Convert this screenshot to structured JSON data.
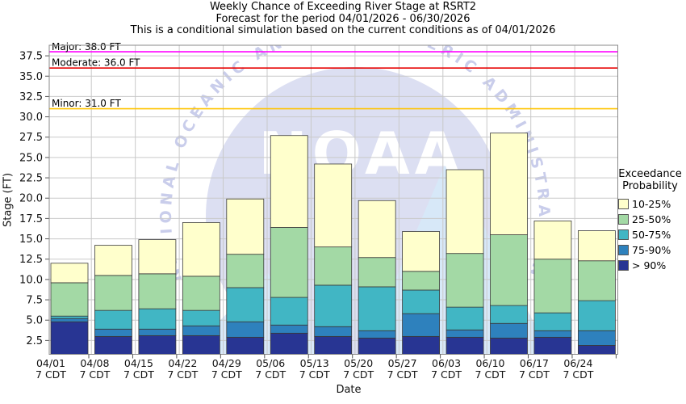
{
  "title": {
    "line1": "Weekly Chance of Exceeding River Stage at RSRT2",
    "line2": "Forecast for the period 04/01/2026 - 06/30/2026",
    "line3": "This is a conditional simulation based on the current conditions as of 04/01/2026"
  },
  "axes": {
    "y_label": "Stage (FT)",
    "x_label": "Date",
    "y_ticks": [
      "2.5",
      "5.0",
      "7.5",
      "10.0",
      "12.5",
      "15.0",
      "17.5",
      "20.0",
      "22.5",
      "25.0",
      "27.5",
      "30.0",
      "32.5",
      "35.0",
      "37.5"
    ],
    "x_ticks": [
      {
        "date": "04/01",
        "time": "7 CDT"
      },
      {
        "date": "04/08",
        "time": "7 CDT"
      },
      {
        "date": "04/15",
        "time": "7 CDT"
      },
      {
        "date": "04/22",
        "time": "7 CDT"
      },
      {
        "date": "04/29",
        "time": "7 CDT"
      },
      {
        "date": "05/06",
        "time": "7 CDT"
      },
      {
        "date": "05/13",
        "time": "7 CDT"
      },
      {
        "date": "05/20",
        "time": "7 CDT"
      },
      {
        "date": "05/27",
        "time": "7 CDT"
      },
      {
        "date": "06/03",
        "time": "7 CDT"
      },
      {
        "date": "06/10",
        "time": "7 CDT"
      },
      {
        "date": "06/17",
        "time": "7 CDT"
      },
      {
        "date": "06/24",
        "time": "7 CDT"
      }
    ]
  },
  "legend": {
    "title_line1": "Exceedance",
    "title_line2": "Probability",
    "items": [
      {
        "label": "10-25%",
        "color": "#FFFFCC"
      },
      {
        "label": "25-50%",
        "color": "#A3D9A5"
      },
      {
        "label": "50-75%",
        "color": "#41B6C4"
      },
      {
        "label": "75-90%",
        "color": "#2E81BD"
      },
      {
        "label": "> 90%",
        "color": "#283593"
      }
    ]
  },
  "watermark": {
    "ring_text": "NATIONAL OCEANIC AND ATMOSPHERIC ADMINISTRATION",
    "wordmark": "NOAA",
    "circle_color": "#dcdff2",
    "ring_text_color": "#c9cdeb",
    "bird_color": "#d7e8f8",
    "wordmark_color": "#ffffff"
  },
  "chart_data": {
    "type": "bar",
    "stacked": true,
    "title": "Weekly Chance of Exceeding River Stage at RSRT2",
    "xlabel": "Date",
    "ylabel": "Stage (FT)",
    "units": "FT",
    "ylim": [
      0.8,
      38.8
    ],
    "baseline": 0.8,
    "grid": true,
    "legend_position": "right",
    "categories": [
      "04/01",
      "04/08",
      "04/15",
      "04/22",
      "04/29",
      "05/06",
      "05/13",
      "05/20",
      "05/27",
      "06/03",
      "06/10",
      "06/17",
      "06/24"
    ],
    "x_sub_label": "7 CDT",
    "series": [
      {
        "name": "> 90%",
        "color": "#283593",
        "tops": [
          4.8,
          3.0,
          3.1,
          3.1,
          2.9,
          3.4,
          3.0,
          2.8,
          3.0,
          2.9,
          2.8,
          2.9,
          1.9
        ]
      },
      {
        "name": "75-90%",
        "color": "#2E81BD",
        "tops": [
          5.2,
          3.9,
          3.9,
          4.3,
          4.8,
          4.4,
          4.2,
          3.7,
          5.8,
          3.8,
          4.6,
          3.7,
          3.7
        ]
      },
      {
        "name": "50-75%",
        "color": "#41B6C4",
        "tops": [
          5.5,
          6.2,
          6.4,
          6.2,
          9.0,
          7.8,
          9.3,
          9.1,
          8.7,
          6.6,
          6.8,
          5.9,
          7.4
        ]
      },
      {
        "name": "25-50%",
        "color": "#A3D9A5",
        "tops": [
          9.6,
          10.5,
          10.7,
          10.4,
          13.1,
          16.4,
          14.0,
          12.7,
          11.0,
          13.2,
          15.5,
          12.5,
          12.3
        ]
      },
      {
        "name": "10-25%",
        "color": "#FFFFCC",
        "tops": [
          12.0,
          14.2,
          14.9,
          17.0,
          19.9,
          27.7,
          24.2,
          19.7,
          15.9,
          23.5,
          28.0,
          17.2,
          16.0
        ]
      }
    ],
    "thresholds": [
      {
        "name": "Major",
        "value": 38.0,
        "label": "Major: 38.0 FT",
        "color": "#FF00FF"
      },
      {
        "name": "Moderate",
        "value": 36.0,
        "label": "Moderate: 36.0 FT",
        "color": "#E60000"
      },
      {
        "name": "Minor",
        "value": 31.0,
        "label": "Minor: 31.0 FT",
        "color": "#FFC400"
      }
    ]
  }
}
